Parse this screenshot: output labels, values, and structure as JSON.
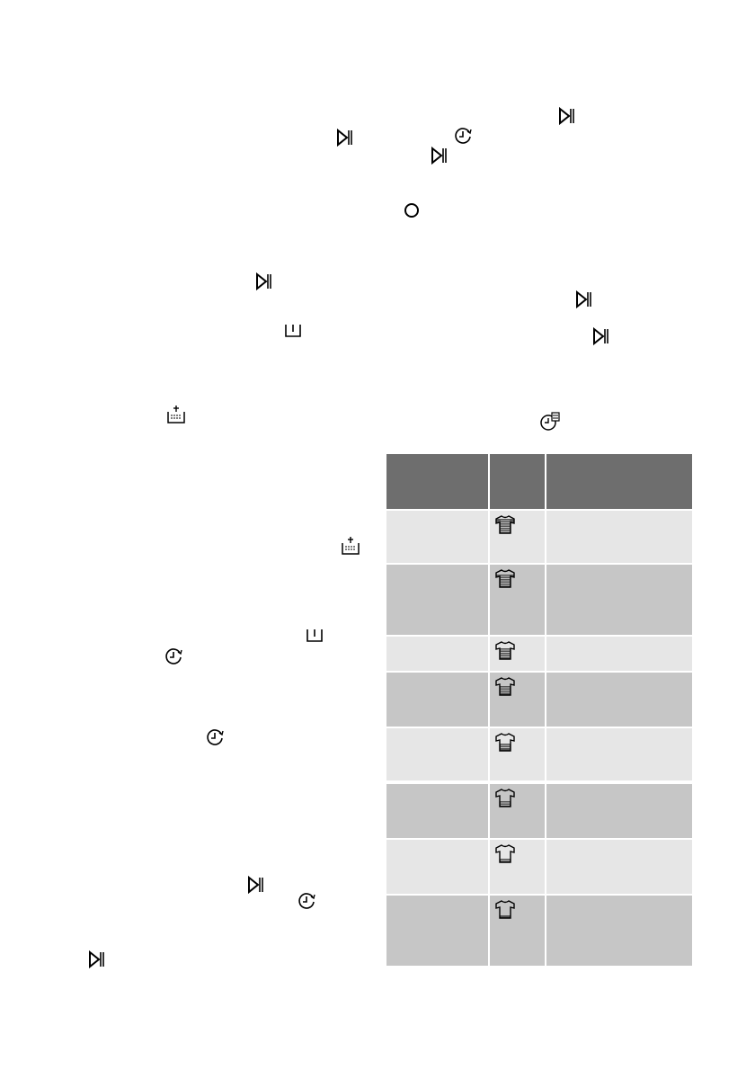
{
  "icons": {
    "play_pause": "play-pause-icon",
    "timer": "delay-timer-icon",
    "power": "power-icon",
    "drain": "drain-icon",
    "rinse_hold": "rinse-hold-icon",
    "time_manager": "time-manager-icon",
    "shirt": "soil-level-shirt-icon"
  },
  "colors": {
    "header": "#6e6e6e",
    "row_light": "#e6e6e6",
    "row_dark": "#c6c6c6"
  },
  "table": {
    "rows": [
      {
        "shade": "light",
        "soil_level": 1.0
      },
      {
        "shade": "dark",
        "soil_level": 0.85
      },
      {
        "shade": "light",
        "soil_level": 0.7
      },
      {
        "shade": "dark",
        "soil_level": 0.55
      },
      {
        "shade": "light",
        "soil_level": 0.4
      },
      {
        "shade": "dark",
        "soil_level": 0.25
      },
      {
        "shade": "light",
        "soil_level": 0.1
      },
      {
        "shade": "dark",
        "soil_level": 0.0
      }
    ]
  }
}
